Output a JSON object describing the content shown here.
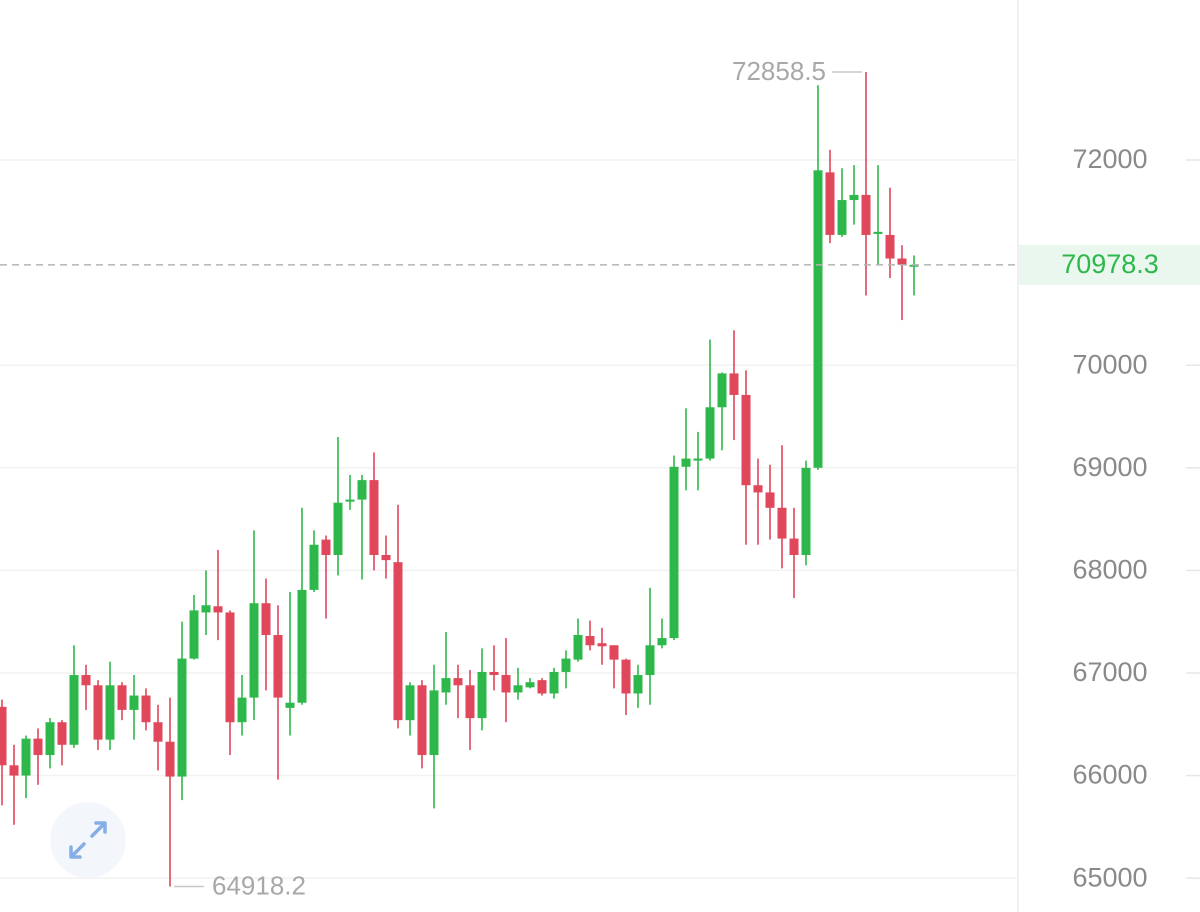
{
  "chart_data": {
    "type": "candlestick",
    "open": [
      66670,
      66100,
      66000,
      66360,
      66200,
      66520,
      66300,
      66980,
      66880,
      66350,
      66880,
      66640,
      66780,
      66520,
      66330,
      65990,
      67140,
      67590,
      67650,
      67590,
      66520,
      66760,
      67680,
      67370,
      66660,
      66710,
      67810,
      68300,
      68150,
      68670,
      68690,
      68880,
      68150,
      68080,
      66540,
      66880,
      66200,
      66810,
      66950,
      66880,
      66560,
      67010,
      66980,
      66810,
      66860,
      66930,
      66800,
      67010,
      67130,
      67360,
      67290,
      67270,
      67130,
      66800,
      66980,
      67270,
      67340,
      69010,
      69070,
      69090,
      69590,
      69920,
      69710,
      68830,
      68760,
      68610,
      68310,
      68150,
      69000,
      71880,
      71270,
      71610,
      71660,
      71280,
      71270,
      71040,
      70960
    ],
    "high": [
      66740,
      66300,
      66390,
      66460,
      66560,
      66540,
      67270,
      67080,
      66930,
      67110,
      66910,
      66980,
      66850,
      66690,
      66760,
      67500,
      67760,
      68000,
      68200,
      67610,
      66980,
      68390,
      67920,
      67660,
      67790,
      68610,
      68390,
      68340,
      69300,
      68930,
      68930,
      69150,
      68340,
      68640,
      66910,
      66930,
      67080,
      67400,
      67080,
      67030,
      67240,
      67270,
      67340,
      67050,
      66950,
      66950,
      67050,
      67220,
      67530,
      67510,
      67440,
      67270,
      67140,
      67080,
      67830,
      67530,
      69120,
      69580,
      69350,
      70250,
      69930,
      70340,
      69950,
      69090,
      69030,
      69220,
      68610,
      69070,
      72730,
      72100,
      71920,
      71950,
      72858.5,
      71950,
      71730,
      71170,
      71070
    ],
    "low": [
      65710,
      65520,
      65780,
      65910,
      66070,
      66100,
      66270,
      66640,
      66250,
      66250,
      66540,
      66350,
      66440,
      66050,
      64918.2,
      65760,
      67130,
      67370,
      67320,
      66200,
      66390,
      66540,
      66830,
      65960,
      66390,
      66690,
      67790,
      67530,
      67950,
      68590,
      67910,
      68000,
      67920,
      66460,
      66390,
      66070,
      65680,
      66690,
      66560,
      66250,
      66440,
      66830,
      66520,
      66740,
      66850,
      66780,
      66750,
      66850,
      67110,
      67220,
      67080,
      66850,
      66590,
      66660,
      66690,
      67240,
      67320,
      68780,
      68780,
      69070,
      69170,
      69270,
      68250,
      68250,
      68300,
      68020,
      67730,
      68050,
      68980,
      71190,
      71250,
      71370,
      70680,
      70980,
      70850,
      70440,
      70680
    ],
    "close": [
      66100,
      66000,
      66360,
      66200,
      66520,
      66300,
      66980,
      66880,
      66350,
      66880,
      66640,
      66780,
      66520,
      66330,
      65990,
      67140,
      67610,
      67660,
      67590,
      66520,
      66760,
      67680,
      67370,
      66760,
      66710,
      67810,
      68250,
      68150,
      68660,
      68690,
      68880,
      68150,
      68100,
      66540,
      66880,
      66200,
      66830,
      66950,
      66880,
      66560,
      67010,
      66980,
      66810,
      66880,
      66910,
      66800,
      67010,
      67140,
      67370,
      67270,
      67260,
      67130,
      66800,
      66980,
      67270,
      67340,
      69010,
      69090,
      69090,
      69590,
      69920,
      69710,
      68830,
      68760,
      68610,
      68310,
      68150,
      69000,
      71900,
      71270,
      71610,
      71660,
      71270,
      71300,
      71040,
      70980,
      70978.3
    ],
    "up_color": "#2eb84b",
    "down_color": "#e0475a",
    "ylim": [
      64670,
      73560
    ],
    "yticks": [
      65000,
      66000,
      67000,
      68000,
      69000,
      70000,
      72000
    ],
    "grid": true
  }
}
